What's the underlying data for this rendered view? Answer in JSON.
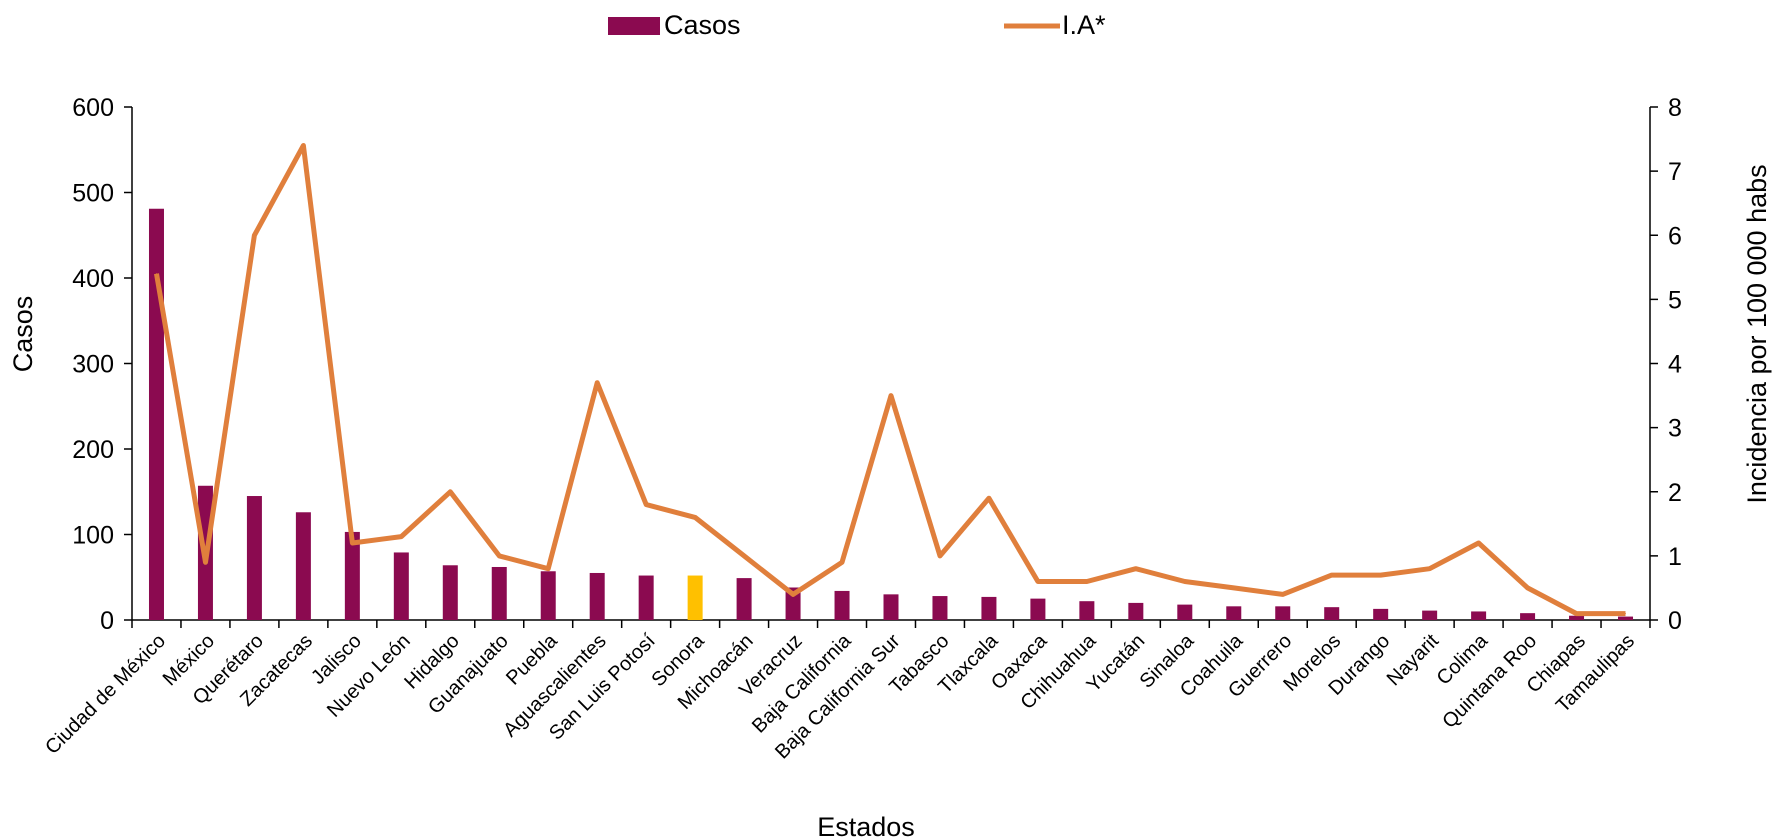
{
  "chart_data": {
    "type": "bar",
    "xlabel": "Estados",
    "ylabel": "Casos",
    "ylabel_right": "Incidencia por 100 000 habs",
    "legend_position": "top",
    "grid": false,
    "categories": [
      "Ciudad de México",
      "México",
      "Querétaro",
      "Zacatecas",
      "Jalisco",
      "Nuevo León",
      "Hidalgo",
      "Guanajuato",
      "Puebla",
      "Aguascalientes",
      "San Luis Potosí",
      "Sonora",
      "Michoacán",
      "Veracruz",
      "Baja California",
      "Baja California Sur",
      "Tabasco",
      "Tlaxcala",
      "Oaxaca",
      "Chihuahua",
      "Yucatán",
      "Sinaloa",
      "Coahuila",
      "Guerrero",
      "Morelos",
      "Durango",
      "Nayarit",
      "Colima",
      "Quintana Roo",
      "Chiapas",
      "Tamaulipas"
    ],
    "ylim": [
      0,
      600
    ],
    "yticks": [
      "0",
      "100",
      "200",
      "300",
      "400",
      "500",
      "600"
    ],
    "y2lim": [
      0,
      8
    ],
    "y2ticks": [
      "0",
      "1",
      "2",
      "3",
      "4",
      "5",
      "6",
      "7",
      "8"
    ],
    "series": [
      {
        "name": "Casos",
        "type": "bar",
        "axis": "left",
        "color": "#8B0A50",
        "highlight_color": "#FFC000",
        "highlight_category": "Sonora",
        "values": [
          481,
          157,
          145,
          126,
          103,
          79,
          64,
          62,
          57,
          55,
          52,
          52,
          49,
          38,
          34,
          30,
          28,
          27,
          25,
          22,
          20,
          18,
          16,
          16,
          15,
          13,
          11,
          10,
          8,
          5,
          4
        ]
      },
      {
        "name": "I.A*",
        "type": "line",
        "axis": "right",
        "color": "#E07F3C",
        "values": [
          5.4,
          0.9,
          6.0,
          7.4,
          1.2,
          1.3,
          2.0,
          1.0,
          0.8,
          3.7,
          1.8,
          1.6,
          1.0,
          0.4,
          0.9,
          3.5,
          1.0,
          1.9,
          0.6,
          0.6,
          0.8,
          0.6,
          0.5,
          0.4,
          0.7,
          0.7,
          0.8,
          1.2,
          0.5,
          0.1,
          0.1
        ]
      }
    ]
  }
}
